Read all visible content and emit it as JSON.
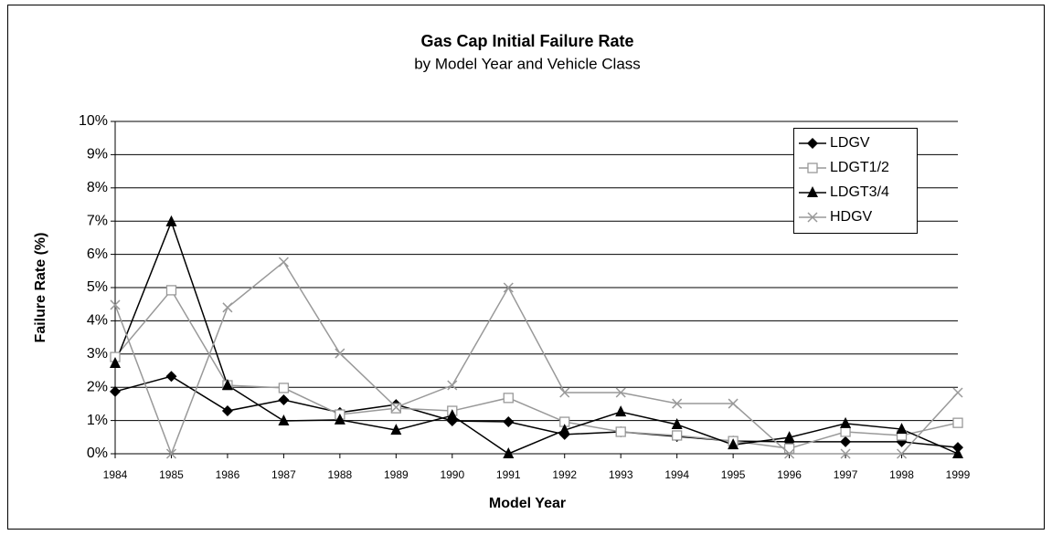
{
  "chart_data": {
    "type": "line",
    "title": "Gas Cap Initial Failure Rate",
    "subtitle": "by Model Year and Vehicle Class",
    "x_label": "Model Year",
    "y_label": "Failure Rate (%)",
    "categories": [
      "1984",
      "1985",
      "1986",
      "1987",
      "1988",
      "1989",
      "1990",
      "1991",
      "1992",
      "1993",
      "1994",
      "1995",
      "1996",
      "1997",
      "1998",
      "1999"
    ],
    "series": [
      {
        "name": "LDGV",
        "color": "#000000",
        "marker": "diamond",
        "values": [
          1.87,
          2.33,
          1.29,
          1.62,
          1.24,
          1.48,
          0.99,
          0.96,
          0.58,
          0.66,
          0.52,
          0.38,
          0.36,
          0.36,
          0.36,
          0.19
        ]
      },
      {
        "name": "LDGT1/2",
        "color": "#999999",
        "marker": "square",
        "values": [
          2.91,
          4.92,
          2.06,
          1.98,
          1.18,
          1.37,
          1.29,
          1.68,
          0.96,
          0.66,
          0.55,
          0.38,
          0.16,
          0.66,
          0.55,
          0.93
        ]
      },
      {
        "name": "LDGT3/4",
        "color": "#000000",
        "marker": "triangle",
        "values": [
          2.72,
          6.98,
          2.06,
          0.99,
          1.02,
          0.71,
          1.15,
          0,
          0.71,
          1.26,
          0.88,
          0.27,
          0.49,
          0.91,
          0.74,
          0
        ]
      },
      {
        "name": "HDGV",
        "color": "#999999",
        "marker": "x",
        "values": [
          4.48,
          0,
          4.4,
          5.77,
          3.02,
          1.4,
          2.06,
          5.0,
          1.84,
          1.84,
          1.51,
          1.51,
          0,
          0,
          0,
          1.84
        ]
      }
    ],
    "ylim": [
      0,
      10
    ],
    "yticks": [
      {
        "value": 0,
        "label": "0%"
      },
      {
        "value": 1,
        "label": "1%"
      },
      {
        "value": 2,
        "label": "2%"
      },
      {
        "value": 3,
        "label": "3%"
      },
      {
        "value": 4,
        "label": "4%"
      },
      {
        "value": 5,
        "label": "5%"
      },
      {
        "value": 6,
        "label": "6%"
      },
      {
        "value": 7,
        "label": "7%"
      },
      {
        "value": 8,
        "label": "8%"
      },
      {
        "value": 9,
        "label": "9%"
      },
      {
        "value": 10,
        "label": "10%"
      }
    ],
    "grid": true,
    "legend": "top-right"
  }
}
